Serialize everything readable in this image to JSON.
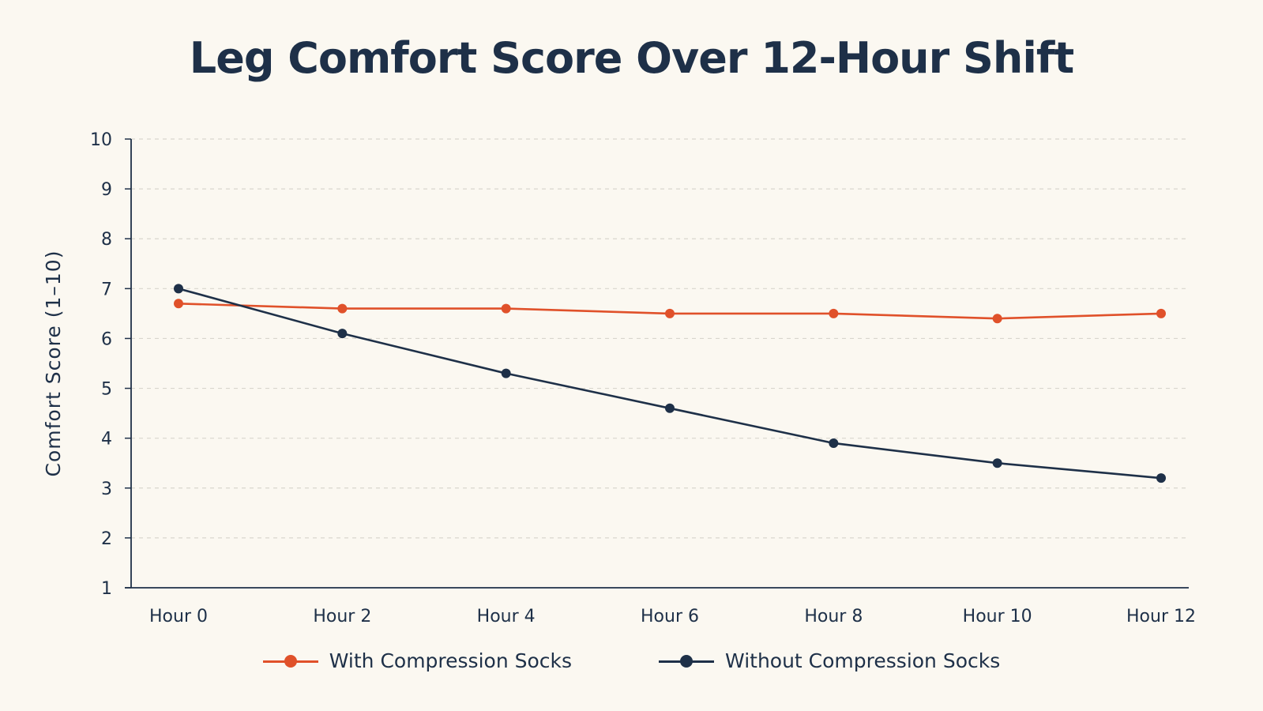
{
  "chart_data": {
    "type": "line",
    "title": "Leg Comfort Score Over 12-Hour Shift",
    "xlabel": "",
    "ylabel": "Comfort Score (1–10)",
    "categories": [
      "Hour 0",
      "Hour 2",
      "Hour 4",
      "Hour 6",
      "Hour 8",
      "Hour 10",
      "Hour 12"
    ],
    "ylim": [
      1,
      10
    ],
    "yticks": [
      "1",
      "2",
      "3",
      "4",
      "5",
      "6",
      "7",
      "8",
      "9",
      "10"
    ],
    "grid": true,
    "legend_position": "bottom",
    "series": [
      {
        "name": "With Compression Socks",
        "color": "#E0512A",
        "values": [
          6.7,
          6.6,
          6.6,
          6.5,
          6.5,
          6.4,
          6.5
        ]
      },
      {
        "name": "Without Compression Socks",
        "color": "#1E3048",
        "values": [
          7.0,
          6.1,
          5.3,
          4.6,
          3.9,
          3.5,
          3.2
        ]
      }
    ]
  }
}
